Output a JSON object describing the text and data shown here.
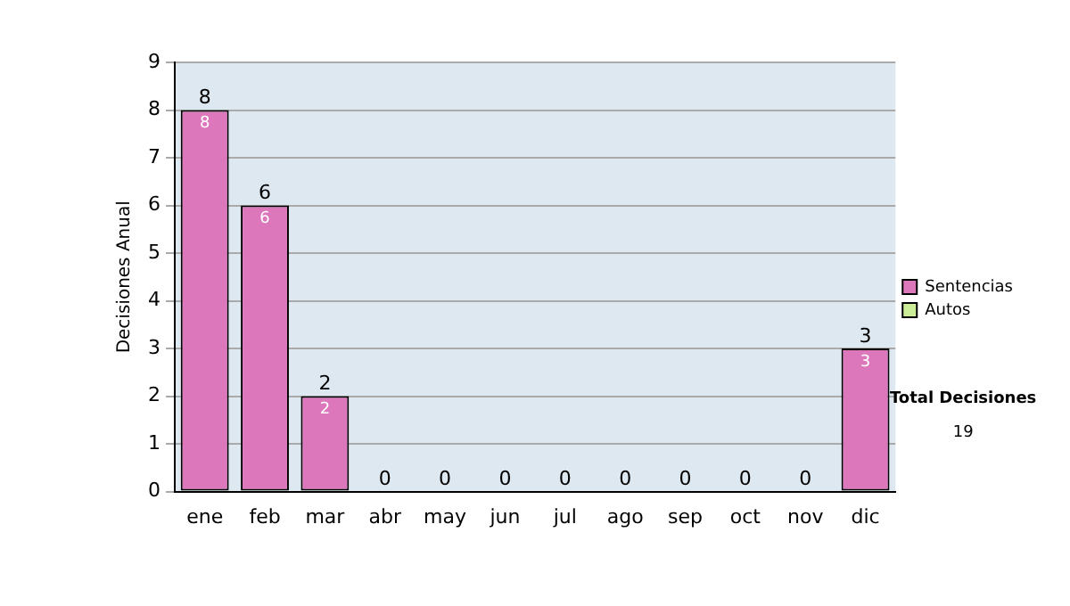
{
  "chart_data": {
    "type": "bar",
    "stacked": true,
    "ylabel": "Decisiones Anual",
    "categories": [
      "ene",
      "feb",
      "mar",
      "abr",
      "may",
      "jun",
      "jul",
      "ago",
      "sep",
      "oct",
      "nov",
      "dic"
    ],
    "series": [
      {
        "name": "Sentencias",
        "color": "#dd77bb",
        "values": [
          8,
          6,
          2,
          0,
          0,
          0,
          0,
          0,
          0,
          0,
          0,
          3
        ],
        "value_labels": [
          "8",
          "6",
          "2",
          null,
          null,
          null,
          null,
          null,
          null,
          null,
          null,
          "3"
        ]
      },
      {
        "name": "Autos",
        "color": "#ccee99",
        "values": [
          0,
          0,
          0,
          0,
          0,
          0,
          0,
          0,
          0,
          0,
          0,
          0
        ]
      }
    ],
    "totals": [
      "8",
      "6",
      "2",
      "0",
      "0",
      "0",
      "0",
      "0",
      "0",
      "0",
      "0",
      "3"
    ],
    "ylim": [
      0,
      9
    ],
    "yticks": [
      0,
      1,
      2,
      3,
      4,
      5,
      6,
      7,
      8,
      9
    ],
    "grid": "y",
    "legend": "right",
    "annotations": [
      "Total Decisiones",
      "19"
    ]
  }
}
